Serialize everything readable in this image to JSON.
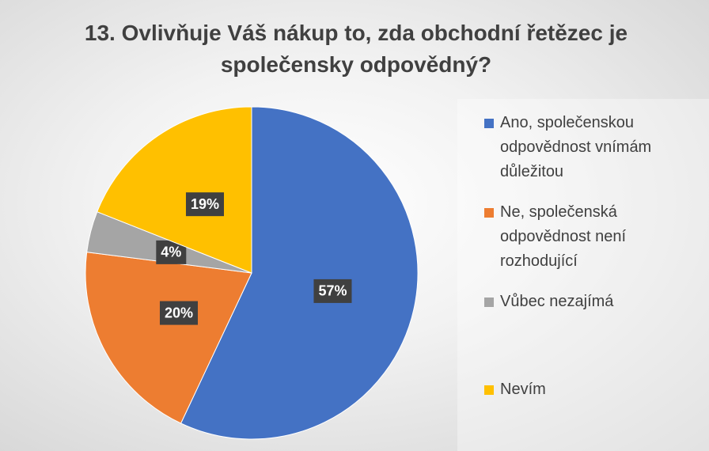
{
  "chart_data": {
    "type": "pie",
    "title": "13. Ovlivňuje Váš nákup to, zda obchodní řetězec je společensky odpovědný?",
    "categories": [
      "Ano, společenskou odpovědnost vnímám důležitou",
      "Ne, společenská odpovědnost není rozhodující",
      "Vůbec nezajímá",
      "Nevím"
    ],
    "values": [
      57,
      20,
      4,
      19
    ],
    "value_labels": [
      "57%",
      "20%",
      "4%",
      "19%"
    ],
    "colors": [
      "#4472c4",
      "#ed7d31",
      "#a5a5a5",
      "#ffc000"
    ],
    "legend": "right"
  }
}
